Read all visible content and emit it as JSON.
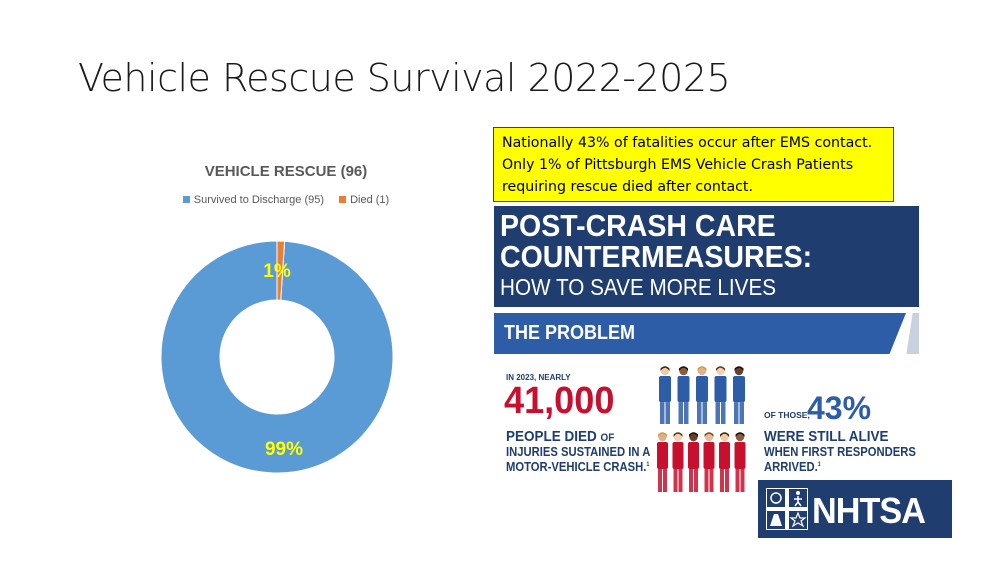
{
  "slide": {
    "title": "Vehicle Rescue Survival 2022-2025"
  },
  "chart_data": {
    "type": "pie",
    "variant": "donut",
    "title": "VEHICLE RESCUE (96)",
    "categories": [
      "Survived to Discharge (95)",
      "Died (1)"
    ],
    "values": [
      95,
      1
    ],
    "data_labels": [
      "99%",
      "1%"
    ],
    "colors": [
      "#5b9bd5",
      "#ed7d31"
    ],
    "label_color": "#ffff00",
    "legend_position": "top"
  },
  "callout": {
    "text": "Nationally 43% of fatalities occur after EMS contact. Only 1% of Pittsburgh EMS Vehicle Crash Patients requiring rescue died after contact."
  },
  "poster": {
    "headline_line1": "POST-CRASH CARE",
    "headline_line2": "COUNTERMEASURES:",
    "subheadline": "HOW TO SAVE MORE LIVES",
    "section": "THE PROBLEM",
    "intro": "IN 2023, NEARLY",
    "big_number": "41,000",
    "died_line1": "PEOPLE DIED",
    "died_line1_suffix": "OF",
    "died_line2": "INJURIES SUSTAINED IN A",
    "died_line3": "MOTOR-VEHICLE CRASH.",
    "footnote_mark": "1",
    "of_those": "OF THOSE,",
    "alive_percent": "43%",
    "alive_line1": "WERE STILL ALIVE",
    "alive_line2": "WHEN FIRST RESPONDERS",
    "alive_line3": "ARRIVED.",
    "people_colors": {
      "blue": "#2e5da8",
      "red": "#c8102e"
    }
  },
  "logo": {
    "text": "NHTSA"
  }
}
